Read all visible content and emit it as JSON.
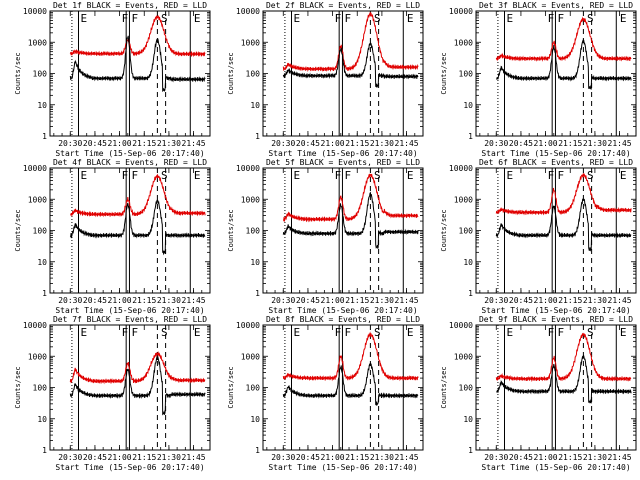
{
  "chart_data": {
    "type": "line",
    "grid": "3x3",
    "y_scale": "log",
    "ylim": [
      1,
      10000
    ],
    "y_ticks": [
      "1",
      "10",
      "100",
      "1000",
      "10000"
    ],
    "ylabel": "Counts/sec",
    "x_range": [
      "20:17:40",
      "21:55"
    ],
    "x_ticks": [
      "20:30",
      "20:45",
      "21:00",
      "21:15",
      "21:30",
      "21:45"
    ],
    "xlabel": "Start Time (15-Sep-06 20:17:40)",
    "series": [
      {
        "name": "BLACK = Events",
        "color": "#000000"
      },
      {
        "name": "RED = LLD",
        "color": "#e00000"
      }
    ],
    "markers": {
      "dotted": [
        "20:31"
      ],
      "solid": [
        "20:35",
        "21:04",
        "21:06",
        "21:43"
      ],
      "dashed": [
        "21:23",
        "21:28"
      ],
      "labels": [
        {
          "text": "E",
          "at": "20:35"
        },
        {
          "text": "F",
          "at": "21:00"
        },
        {
          "text": "F",
          "at": "21:06"
        },
        {
          "text": "S",
          "at": "21:24"
        },
        {
          "text": "E",
          "at": "21:44"
        }
      ]
    },
    "panels": [
      {
        "title": "Det 1f BLACK = Events, RED = LLD",
        "red": {
          "base": 430,
          "start_bump": 520,
          "flare1": 1200,
          "flare2": 6500,
          "after": 420
        },
        "black": {
          "base": 70,
          "start_bump": 250,
          "flare1": 1500,
          "flare2": 1200,
          "after": 65,
          "dip": 30
        }
      },
      {
        "title": "Det 2f BLACK = Events, RED = LLD",
        "red": {
          "base": 140,
          "start_bump": 200,
          "flare1": 750,
          "flare2": 8000,
          "after": 160
        },
        "black": {
          "base": 85,
          "start_bump": 130,
          "flare1": 600,
          "flare2": 900,
          "after": 80,
          "dip": 40
        }
      },
      {
        "title": "Det 3f BLACK = Events, RED = LLD",
        "red": {
          "base": 300,
          "start_bump": 380,
          "flare1": 1000,
          "flare2": 5500,
          "after": 300
        },
        "black": {
          "base": 70,
          "start_bump": 160,
          "flare1": 700,
          "flare2": 1100,
          "after": 70,
          "dip": 35
        }
      },
      {
        "title": "Det 4f BLACK = Events, RED = LLD",
        "red": {
          "base": 330,
          "start_bump": 450,
          "flare1": 1000,
          "flare2": 5500,
          "after": 360
        },
        "black": {
          "base": 70,
          "start_bump": 160,
          "flare1": 700,
          "flare2": 900,
          "after": 70,
          "dip": 20
        }
      },
      {
        "title": "Det 5f BLACK = Events, RED = LLD",
        "red": {
          "base": 230,
          "start_bump": 350,
          "flare1": 1200,
          "flare2": 6000,
          "after": 300
        },
        "black": {
          "base": 80,
          "start_bump": 140,
          "flare1": 650,
          "flare2": 1500,
          "after": 90,
          "dip": 30
        }
      },
      {
        "title": "Det 6f BLACK = Events, RED = LLD",
        "red": {
          "base": 380,
          "start_bump": 480,
          "flare1": 2000,
          "flare2": 6000,
          "after": 450
        },
        "black": {
          "base": 70,
          "start_bump": 160,
          "flare1": 600,
          "flare2": 1000,
          "after": 70,
          "dip": 25
        }
      },
      {
        "title": "Det 7f BLACK = Events, RED = LLD",
        "red": {
          "base": 160,
          "start_bump": 400,
          "flare1": 600,
          "flare2": 1200,
          "after": 170
        },
        "black": {
          "base": 55,
          "start_bump": 130,
          "flare1": 380,
          "flare2": 900,
          "after": 60,
          "dip": 15
        }
      },
      {
        "title": "Det 8f BLACK = Events, RED = LLD",
        "red": {
          "base": 200,
          "start_bump": 260,
          "flare1": 1000,
          "flare2": 5000,
          "after": 200
        },
        "black": {
          "base": 55,
          "start_bump": 110,
          "flare1": 450,
          "flare2": 550,
          "after": 55,
          "dip": 30
        }
      },
      {
        "title": "Det 9f BLACK = Events, RED = LLD",
        "red": {
          "base": 190,
          "start_bump": 240,
          "flare1": 900,
          "flare2": 5000,
          "after": 190
        },
        "black": {
          "base": 75,
          "start_bump": 150,
          "flare1": 500,
          "flare2": 1000,
          "after": 75,
          "dip": 35
        }
      }
    ]
  }
}
